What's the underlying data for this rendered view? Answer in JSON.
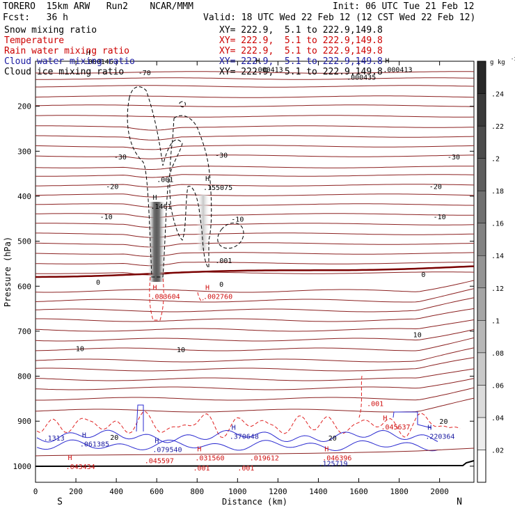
{
  "header": {
    "model_line": "TORERO  15km ARW   Run2    NCAR/MMM",
    "fcst_line": "Fcst:   36 h",
    "init_line": "Init: 06 UTC Tue 21 Feb 12",
    "valid_line": "Valid: 18 UTC Wed 22 Feb 12 (12 CST Wed 22 Feb 12)"
  },
  "fields": [
    {
      "name": "Snow mixing ratio",
      "xy": "XY= 222.9,  5.1 to 222.9,149.8",
      "color": "#000000"
    },
    {
      "name": "Temperature",
      "xy": "XY= 222.9,  5.1 to 222.9,149.8",
      "color": "#cc0000"
    },
    {
      "name": "Rain water mixing ratio",
      "xy": "XY= 222.9,  5.1 to 222.9,149.8",
      "color": "#cc0000"
    },
    {
      "name": "Cloud water mixing ratio",
      "xy": "XY= 222.9,  5.1 to 222.9,149.8",
      "color": "#1a1aa0"
    },
    {
      "name": "Cloud ice mixing ratio",
      "xy": "XY= 222.9,  5.1 to 222.9,149.8",
      "color": "#000000"
    }
  ],
  "chart_data": {
    "type": "cross-section contour",
    "xlabel": "Distance (km)",
    "ylabel": "Pressure (hPa)",
    "xlim": [
      0,
      2170
    ],
    "ylim": [
      1050,
      100
    ],
    "x_ticks": [
      "0",
      "200",
      "400",
      "600",
      "800",
      "1000",
      "1200",
      "1400",
      "1600",
      "1800",
      "2000"
    ],
    "y_ticks": [
      "200",
      "300",
      "400",
      "500",
      "600",
      "700",
      "800",
      "900",
      "1000"
    ],
    "left_end_label": "S",
    "right_end_label": "N",
    "colorbar": {
      "unit": "g kg",
      "unit_exp": "-1",
      "labels": [
        ".02",
        ".04",
        ".06",
        ".08",
        ".1",
        ".12",
        ".14",
        ".16",
        ".18",
        ".2",
        ".22",
        ".24"
      ],
      "min": 0,
      "max": 0.26
    },
    "temperature_labels": [
      {
        "text": "-70",
        "x": 540,
        "p": 125
      },
      {
        "text": "-30",
        "x": 420,
        "p": 312
      },
      {
        "text": "-30",
        "x": 920,
        "p": 308
      },
      {
        "text": "-30",
        "x": 2070,
        "p": 312
      },
      {
        "text": "-20",
        "x": 380,
        "p": 378
      },
      {
        "text": "-20",
        "x": 1980,
        "p": 378
      },
      {
        "text": "-10",
        "x": 350,
        "p": 445
      },
      {
        "text": "-10",
        "x": 1000,
        "p": 450
      },
      {
        "text": "-10",
        "x": 2000,
        "p": 445
      },
      {
        "text": "0",
        "x": 310,
        "p": 590
      },
      {
        "text": "0",
        "x": 920,
        "p": 595
      },
      {
        "text": "0",
        "x": 1920,
        "p": 573
      },
      {
        "text": "10",
        "x": 220,
        "p": 738
      },
      {
        "text": "10",
        "x": 720,
        "p": 740
      },
      {
        "text": "10",
        "x": 1890,
        "p": 707
      },
      {
        "text": "20",
        "x": 390,
        "p": 935
      },
      {
        "text": "20",
        "x": 1470,
        "p": 937
      },
      {
        "text": "20",
        "x": 2020,
        "p": 900
      }
    ],
    "maxima_labels": [
      {
        "field": "cloud_ice",
        "text": ".000146",
        "x": 240,
        "p": 100,
        "h": true
      },
      {
        "field": "cloud_ice",
        "text": ".000413",
        "x": 1080,
        "p": 118,
        "h": true
      },
      {
        "field": "cloud_ice",
        "text": ".000413",
        "x": 1720,
        "p": 118,
        "h": true
      },
      {
        "field": "cloud_ice",
        "text": ".000435",
        "x": 1540,
        "p": 135,
        "h": false
      },
      {
        "field": "snow",
        "text": ".1461",
        "x": 570,
        "p": 422,
        "h": true
      },
      {
        "field": "snow",
        "text": ".155075",
        "x": 830,
        "p": 380,
        "h": true
      },
      {
        "field": "snow",
        "text": ".001",
        "x": 600,
        "p": 362,
        "h": false
      },
      {
        "field": "snow",
        "text": ".001",
        "x": 890,
        "p": 542,
        "h": false
      },
      {
        "field": "rain",
        "text": ".083604",
        "x": 570,
        "p": 622,
        "h": true
      },
      {
        "field": "rain",
        "text": ".002760",
        "x": 830,
        "p": 622,
        "h": true
      },
      {
        "field": "rain",
        "text": ".001",
        "x": 1640,
        "p": 860,
        "h": false
      },
      {
        "field": "rain",
        "text": ".045637",
        "x": 1710,
        "p": 912,
        "h": true
      },
      {
        "field": "rain",
        "text": ".043434",
        "x": 150,
        "p": 1000,
        "h": true
      },
      {
        "field": "rain",
        "text": ".045597",
        "x": 540,
        "p": 987,
        "h": false
      },
      {
        "field": "rain",
        "text": ".031560",
        "x": 790,
        "p": 981,
        "h": true
      },
      {
        "field": "rain",
        "text": ".019612",
        "x": 1060,
        "p": 981,
        "h": false
      },
      {
        "field": "rain",
        "text": ".046396",
        "x": 1420,
        "p": 981,
        "h": true
      },
      {
        "field": "rain",
        "text": ".001",
        "x": 780,
        "p": 1003,
        "h": false
      },
      {
        "field": "rain",
        "text": ".001",
        "x": 1000,
        "p": 1003,
        "h": false
      },
      {
        "field": "cloud_water",
        "text": ".1313",
        "x": 40,
        "p": 937,
        "h": false
      },
      {
        "field": "cloud_water",
        "text": ".061385",
        "x": 220,
        "p": 950,
        "h": true
      },
      {
        "field": "cloud_water",
        "text": ".079540",
        "x": 580,
        "p": 962,
        "h": true
      },
      {
        "field": "cloud_water",
        "text": ".370648",
        "x": 960,
        "p": 933,
        "h": true
      },
      {
        "field": "cloud_water",
        "text": ".125719",
        "x": 1400,
        "p": 993,
        "h": false
      },
      {
        "field": "cloud_water",
        "text": ".220364",
        "x": 1930,
        "p": 933,
        "h": true
      }
    ]
  }
}
